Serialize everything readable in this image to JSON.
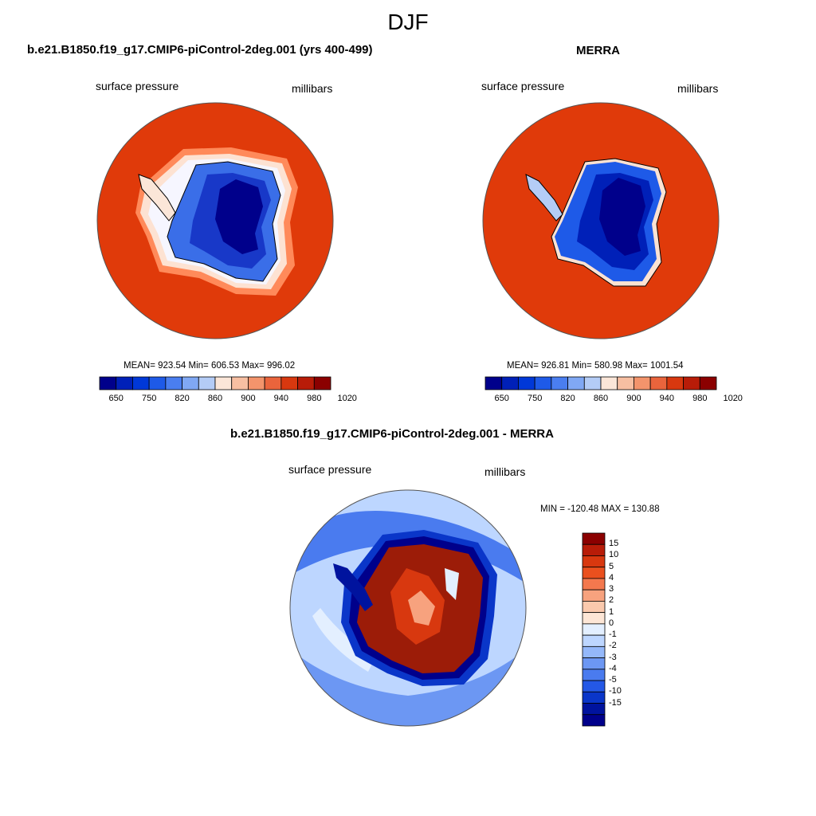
{
  "figure": {
    "title": "DJF"
  },
  "panels": [
    {
      "title": "b.e21.B1850.f19_g17.CMIP6-piControl-2deg.001 (yrs 400-499)",
      "left_label": "surface pressure",
      "right_label": "millibars",
      "stats": "MEAN= 923.54  Min= 606.53  Max= 996.02"
    },
    {
      "title": "MERRA",
      "left_label": "surface pressure",
      "right_label": "millibars",
      "stats": "MEAN= 926.81  Min= 580.98  Max= 1001.54"
    },
    {
      "title": "b.e21.B1850.f19_g17.CMIP6-piControl-2deg.001 - MERRA",
      "left_label": "surface pressure",
      "right_label": "millibars",
      "stats": "MIN = -120.48 MAX = 130.88"
    }
  ],
  "colorbar_abs": {
    "colors": [
      "#00008b",
      "#0020b8",
      "#0038d8",
      "#1e5ae8",
      "#4a7ef0",
      "#80a8f4",
      "#b4ccf6",
      "#fbe6d8",
      "#f7bfa2",
      "#f3946c",
      "#ea643c",
      "#d8380f",
      "#b81c08",
      "#8b0000"
    ],
    "ticks": [
      "650",
      "750",
      "820",
      "860",
      "900",
      "940",
      "980",
      "1020"
    ]
  },
  "colorbar_diff": {
    "colors": [
      "#8b0000",
      "#b81c08",
      "#d8380f",
      "#ea501e",
      "#f3784e",
      "#f7a27e",
      "#fac9ad",
      "#fde6d6",
      "#e3efff",
      "#bdd6ff",
      "#94b8fa",
      "#6c97f3",
      "#4a7bef",
      "#2458e6",
      "#0a36c9",
      "#00139e",
      "#00008b"
    ],
    "ticks": [
      "15",
      "10",
      "5",
      "4",
      "3",
      "2",
      "1",
      "0",
      "-1",
      "-2",
      "-3",
      "-4",
      "-5",
      "-10",
      "-15"
    ]
  },
  "map_colors": {
    "ocean_abs": "#e03a0a",
    "land_low": "#00008b",
    "ocean_diff": "#bdd6ff",
    "land_diff": "#9c1c08"
  }
}
